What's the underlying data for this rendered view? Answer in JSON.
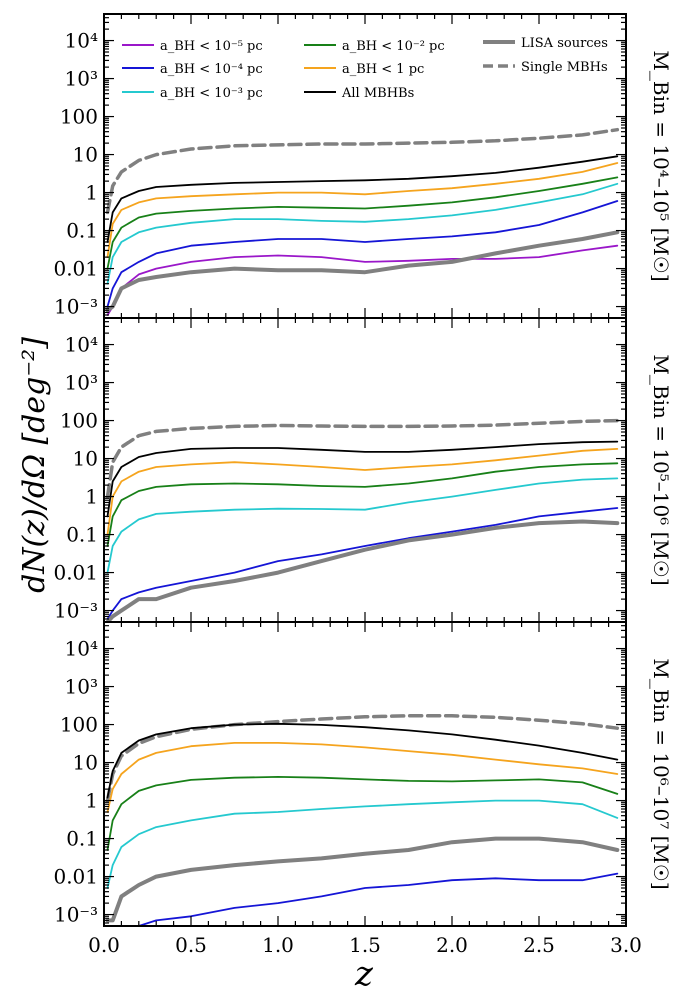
{
  "figure": {
    "ylabel": "dN(z)/dΩ [deg⁻²]",
    "xlabel": "z"
  },
  "legend": {
    "items": [
      {
        "label": "a_BH < 10⁻⁵ pc",
        "color": "#9a17c9",
        "style": "solid"
      },
      {
        "label": "a_BH < 10⁻⁴ pc",
        "color": "#1515d6",
        "style": "solid"
      },
      {
        "label": "a_BH < 10⁻³ pc",
        "color": "#25c9cf",
        "style": "solid"
      },
      {
        "label": "a_BH < 10⁻² pc",
        "color": "#188018",
        "style": "solid"
      },
      {
        "label": "a_BH < 1 pc",
        "color": "#f5a41e",
        "style": "solid"
      },
      {
        "label": "All MBHBs",
        "color": "#000000",
        "style": "solid"
      },
      {
        "label": "LISA sources",
        "color": "#808080",
        "style": "thick"
      },
      {
        "label": "Single MBHs",
        "color": "#808080",
        "style": "dashed"
      }
    ]
  },
  "chart_data": [
    {
      "type": "line",
      "panel_label": "M_Bin = 10⁴–10⁵ [M☉]",
      "xlim": [
        0,
        3
      ],
      "ylim": [
        0.0005,
        50000
      ],
      "yscale": "log",
      "xticks": [
        "0.0",
        "0.5",
        "1.0",
        "1.5",
        "2.0",
        "2.5",
        "3.0"
      ],
      "yticks": [
        "10⁻³",
        "0.01",
        "0.1",
        "1",
        "10",
        "100",
        "10³",
        "10⁴"
      ],
      "x": [
        0.02,
        0.05,
        0.1,
        0.2,
        0.3,
        0.5,
        0.75,
        1.0,
        1.25,
        1.5,
        1.75,
        2.0,
        2.25,
        2.5,
        2.75,
        2.95
      ],
      "series": [
        {
          "name": "Single MBHs",
          "values": [
            0.3,
            1.5,
            3.5,
            7,
            10,
            14,
            17,
            18,
            19,
            19,
            20,
            21,
            23,
            27,
            33,
            45
          ]
        },
        {
          "name": "All MBHBs",
          "values": [
            0.05,
            0.3,
            0.7,
            1.1,
            1.4,
            1.6,
            1.8,
            1.9,
            2.0,
            2.1,
            2.3,
            2.7,
            3.3,
            4.5,
            6.5,
            9
          ]
        },
        {
          "name": "a_BH < 1 pc",
          "values": [
            0.02,
            0.15,
            0.35,
            0.55,
            0.7,
            0.8,
            0.9,
            1.0,
            1.0,
            0.9,
            1.1,
            1.3,
            1.7,
            2.3,
            3.5,
            6
          ]
        },
        {
          "name": "a_BH < 10⁻² pc",
          "values": [
            0.01,
            0.05,
            0.12,
            0.22,
            0.28,
            0.33,
            0.38,
            0.42,
            0.4,
            0.38,
            0.45,
            0.55,
            0.75,
            1.1,
            1.7,
            2.5
          ]
        },
        {
          "name": "a_BH < 10⁻³ pc",
          "values": [
            0.004,
            0.02,
            0.05,
            0.09,
            0.12,
            0.16,
            0.2,
            0.2,
            0.18,
            0.17,
            0.2,
            0.25,
            0.35,
            0.55,
            0.9,
            1.7
          ]
        },
        {
          "name": "a_BH < 10⁻⁴ pc",
          "values": [
            0.001,
            0.003,
            0.008,
            0.015,
            0.025,
            0.04,
            0.05,
            0.06,
            0.06,
            0.05,
            0.06,
            0.07,
            0.09,
            0.14,
            0.3,
            0.6
          ]
        },
        {
          "name": "a_BH < 10⁻⁵ pc",
          "values": [
            0.0006,
            0.001,
            0.003,
            0.007,
            0.01,
            0.015,
            0.02,
            0.022,
            0.02,
            0.015,
            0.016,
            0.018,
            0.018,
            0.02,
            0.03,
            0.04
          ]
        },
        {
          "name": "LISA sources",
          "values": [
            0.0008,
            0.001,
            0.003,
            0.005,
            0.006,
            0.008,
            0.01,
            0.009,
            0.009,
            0.008,
            0.012,
            0.015,
            0.025,
            0.04,
            0.06,
            0.09
          ]
        }
      ]
    },
    {
      "type": "line",
      "panel_label": "M_Bin = 10⁵–10⁶ [M☉]",
      "xlim": [
        0,
        3
      ],
      "ylim": [
        0.0005,
        50000
      ],
      "yscale": "log",
      "xticks": [
        "0.0",
        "0.5",
        "1.0",
        "1.5",
        "2.0",
        "2.5",
        "3.0"
      ],
      "yticks": [
        "10⁻³",
        "0.01",
        "0.1",
        "1",
        "10",
        "100",
        "10³",
        "10⁴"
      ],
      "x": [
        0.02,
        0.05,
        0.1,
        0.2,
        0.3,
        0.5,
        0.75,
        1.0,
        1.25,
        1.5,
        1.75,
        2.0,
        2.25,
        2.5,
        2.75,
        2.95
      ],
      "series": [
        {
          "name": "Single MBHs",
          "values": [
            1,
            8,
            20,
            40,
            52,
            62,
            70,
            74,
            72,
            70,
            70,
            72,
            76,
            85,
            95,
            100
          ]
        },
        {
          "name": "All MBHBs",
          "values": [
            0.3,
            2.5,
            6,
            11,
            14,
            18,
            19,
            19,
            17,
            15,
            15,
            17,
            20,
            24,
            27,
            28
          ]
        },
        {
          "name": "a_BH < 1 pc",
          "values": [
            0.1,
            1,
            2.5,
            4.5,
            6,
            7,
            8,
            7,
            6,
            5,
            6,
            7,
            9,
            12,
            16,
            18
          ]
        },
        {
          "name": "a_BH < 10⁻² pc",
          "values": [
            0.05,
            0.3,
            0.8,
            1.4,
            1.8,
            2.1,
            2.2,
            2.1,
            1.9,
            1.8,
            2.2,
            3,
            4.5,
            6,
            7,
            7.5
          ]
        },
        {
          "name": "a_BH < 10⁻³ pc",
          "values": [
            0.01,
            0.05,
            0.12,
            0.25,
            0.35,
            0.4,
            0.45,
            0.48,
            0.47,
            0.45,
            0.7,
            1,
            1.5,
            2.2,
            2.8,
            3
          ]
        },
        {
          "name": "a_BH < 10⁻⁴ pc",
          "values": [
            0.0006,
            0.001,
            0.002,
            0.003,
            0.004,
            0.006,
            0.01,
            0.02,
            0.03,
            0.05,
            0.08,
            0.12,
            0.18,
            0.3,
            0.4,
            0.5
          ]
        },
        {
          "name": "LISA sources",
          "values": [
            0.0005,
            0.0007,
            0.001,
            0.002,
            0.002,
            0.004,
            0.006,
            0.01,
            0.02,
            0.04,
            0.07,
            0.1,
            0.15,
            0.2,
            0.22,
            0.2
          ]
        }
      ]
    },
    {
      "type": "line",
      "panel_label": "M_Bin = 10⁶–10⁷ [M☉]",
      "xlim": [
        0,
        3
      ],
      "ylim": [
        0.0005,
        50000
      ],
      "yscale": "log",
      "xticks": [
        "0.0",
        "0.5",
        "1.0",
        "1.5",
        "2.0",
        "2.5",
        "3.0"
      ],
      "yticks": [
        "10⁻³",
        "0.01",
        "0.1",
        "1",
        "10",
        "100",
        "10³",
        "10⁴"
      ],
      "x": [
        0.02,
        0.05,
        0.1,
        0.2,
        0.3,
        0.5,
        0.75,
        1.0,
        1.25,
        1.5,
        1.75,
        2.0,
        2.25,
        2.5,
        2.75,
        2.95
      ],
      "series": [
        {
          "name": "Single MBHs",
          "values": [
            1,
            5,
            15,
            32,
            48,
            75,
            100,
            120,
            140,
            160,
            170,
            170,
            155,
            130,
            105,
            80
          ]
        },
        {
          "name": "All MBHBs",
          "values": [
            1.2,
            6,
            18,
            38,
            55,
            80,
            100,
            105,
            98,
            85,
            70,
            55,
            40,
            28,
            18,
            12
          ]
        },
        {
          "name": "a_BH < 1 pc",
          "values": [
            0.5,
            2,
            5,
            12,
            18,
            27,
            33,
            33,
            30,
            25,
            20,
            16,
            12,
            9,
            7,
            5
          ]
        },
        {
          "name": "a_BH < 10⁻² pc",
          "values": [
            0.05,
            0.3,
            0.8,
            1.8,
            2.5,
            3.5,
            4,
            4.2,
            4.0,
            3.6,
            3.3,
            3.2,
            3.4,
            3.6,
            3.0,
            1.5
          ]
        },
        {
          "name": "a_BH < 10⁻³ pc",
          "values": [
            0.005,
            0.02,
            0.06,
            0.13,
            0.2,
            0.3,
            0.45,
            0.5,
            0.6,
            0.7,
            0.8,
            0.9,
            1.0,
            1.0,
            0.8,
            0.35
          ]
        },
        {
          "name": "a_BH < 10⁻⁴ pc",
          "values": [
            null,
            null,
            null,
            0.0005,
            0.0007,
            0.0009,
            0.0015,
            0.002,
            0.003,
            0.005,
            0.006,
            0.008,
            0.009,
            0.008,
            0.008,
            0.012
          ]
        },
        {
          "name": "LISA sources",
          "values": [
            0.0007,
            0.0007,
            0.003,
            0.006,
            0.01,
            0.015,
            0.02,
            0.025,
            0.03,
            0.04,
            0.05,
            0.08,
            0.1,
            0.1,
            0.08,
            0.05
          ]
        }
      ]
    }
  ]
}
